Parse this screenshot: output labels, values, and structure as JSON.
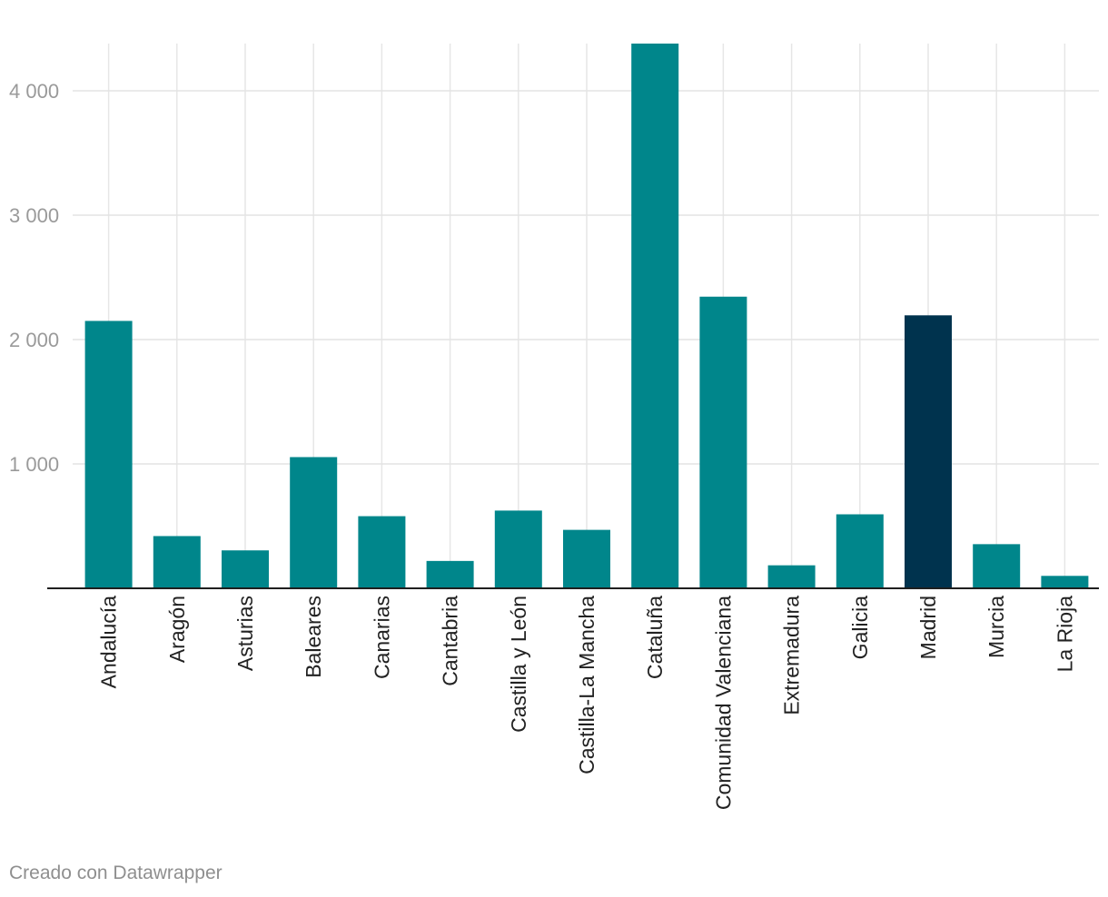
{
  "chart_data": {
    "type": "bar",
    "title": "",
    "xlabel": "",
    "ylabel": "",
    "ylim": [
      0,
      4380
    ],
    "yticks": [
      1000,
      2000,
      3000,
      4000
    ],
    "ytick_labels": [
      "1 000",
      "2 000",
      "3 000",
      "4 000"
    ],
    "grid": true,
    "categories": [
      "Andalucía",
      "Aragón",
      "Asturias",
      "Baleares",
      "Canarias",
      "Cantabria",
      "Castilla y León",
      "Castilla-La Mancha",
      "Cataluña",
      "Comunidad Valenciana",
      "Extremadura",
      "Galicia",
      "Madrid",
      "Murcia",
      "La Rioja"
    ],
    "values": [
      2150,
      420,
      305,
      1055,
      580,
      220,
      625,
      470,
      4380,
      2345,
      185,
      595,
      2195,
      355,
      100
    ],
    "bar_color": "#00868b",
    "highlight_color": "#00334e",
    "highlight_category": "Madrid"
  },
  "footer": {
    "credit": "Creado con Datawrapper"
  }
}
